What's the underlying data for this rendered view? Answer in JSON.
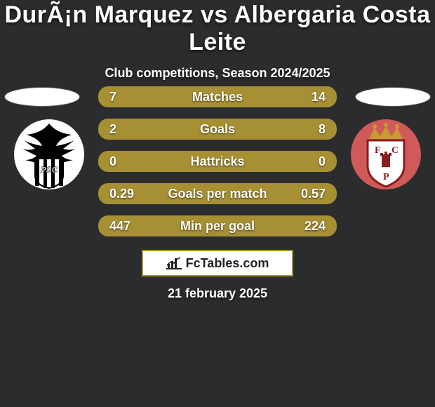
{
  "background_color": "#2b2c2e",
  "title": "DurÃ¡n Marquez vs Albergaria Costa Leite",
  "subtitle": "Club competitions, Season 2024/2025",
  "accent_color": "#a69033",
  "rows": [
    {
      "label": "Matches",
      "left": "7",
      "right": "14"
    },
    {
      "label": "Goals",
      "left": "2",
      "right": "8"
    },
    {
      "label": "Hattricks",
      "left": "0",
      "right": "0"
    },
    {
      "label": "Goals per match",
      "left": "0.29",
      "right": "0.57"
    },
    {
      "label": "Min per goal",
      "left": "447",
      "right": "224"
    }
  ],
  "row_fontsize": 18,
  "brand_text": "FcTables.com",
  "date_text": "21 february 2025",
  "crest_left": {
    "bg": "#ffffff",
    "stripe": "#000000",
    "text": "PSC"
  },
  "crest_right": {
    "bg": "#d05a5a",
    "crown": "#c69b33",
    "shield": "#ffffff",
    "letters": "FCP"
  }
}
